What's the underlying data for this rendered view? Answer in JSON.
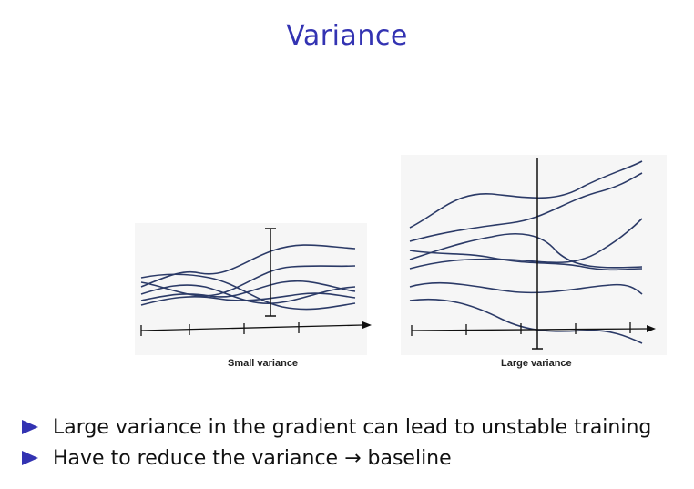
{
  "slide": {
    "title": "Variance"
  },
  "figure": {
    "left_caption": "Small variance",
    "right_caption": "Large variance"
  },
  "bullets": [
    {
      "text": "Large variance in the gradient can lead to unstable training"
    },
    {
      "text": "Have to reduce the variance → baseline"
    }
  ],
  "colors": {
    "accent": "#3333b2",
    "curve": "#2b3a67",
    "axis": "#111111"
  }
}
